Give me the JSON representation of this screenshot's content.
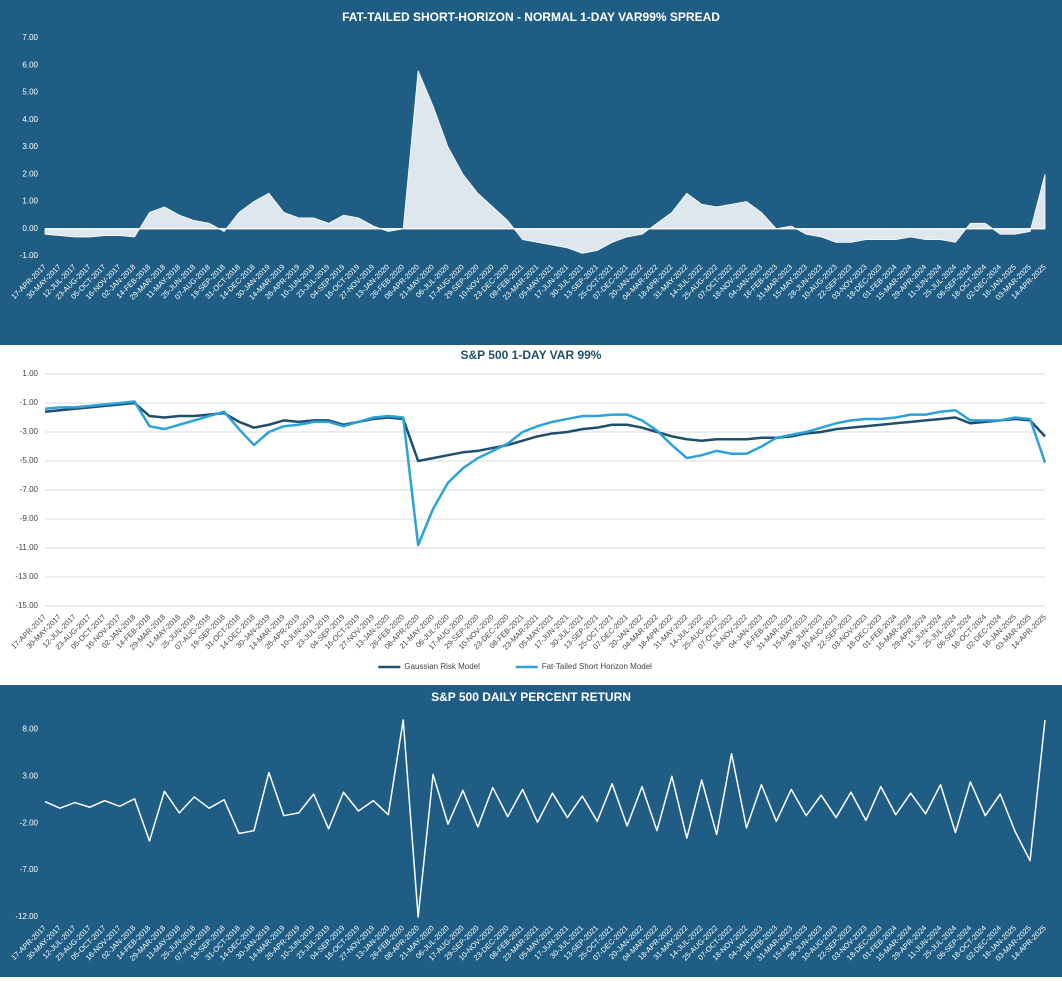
{
  "chart_data": [
    {
      "type": "area",
      "title": "FAT-TAILED SHORT-HORIZON - NORMAL 1-DAY VAR99% SPREAD",
      "background": "#1f5d85",
      "color": "#ffffff",
      "x_axis_line": true,
      "grid": false,
      "categories": [
        "17-APR-2017",
        "30-MAY-2017",
        "12-JUL-2017",
        "23-AUG-2017",
        "05-OCT-2017",
        "16-NOV-2017",
        "02-JAN-2018",
        "14-FEB-2018",
        "29-MAR-2018",
        "11-MAY-2018",
        "25-JUN-2018",
        "07-AUG-2018",
        "19-SEP-2018",
        "31-OCT-2018",
        "14-DEC-2018",
        "30-JAN-2019",
        "14-MAR-2019",
        "26-APR-2019",
        "10-JUN-2019",
        "23-JUL-2019",
        "04-SEP-2019",
        "16-OCT-2019",
        "27-NOV-2019",
        "13-JAN-2020",
        "26-FEB-2020",
        "08-APR-2020",
        "21-MAY-2020",
        "06-JUL-2020",
        "17-AUG-2020",
        "29-SEP-2020",
        "10-NOV-2020",
        "23-DEC-2020",
        "08-FEB-2021",
        "23-MAR-2021",
        "05-MAY-2021",
        "17-JUN-2021",
        "30-JUL-2021",
        "13-SEP-2021",
        "25-OCT-2021",
        "07-DEC-2021",
        "20-JAN-2022",
        "04-MAR-2022",
        "18-APR-2022",
        "31-MAY-2022",
        "14-JUL-2022",
        "25-AUG-2022",
        "07-OCT-2022",
        "18-NOV-2022",
        "04-JAN-2023",
        "16-FEB-2023",
        "31-MAR-2023",
        "15-MAY-2023",
        "28-JUN-2023",
        "10-AUG-2023",
        "22-SEP-2023",
        "03-NOV-2023",
        "18-DEC-2023",
        "01-FEB-2024",
        "15-MAR-2024",
        "29-APR-2024",
        "11-JUN-2024",
        "25-JUL-2024",
        "06-SEP-2024",
        "18-OCT-2024",
        "02-DEC-2024",
        "16-JAN-2025",
        "03-MAR-2025",
        "14-APR-2025"
      ],
      "values": [
        -0.2,
        -0.25,
        -0.3,
        -0.3,
        -0.25,
        -0.25,
        -0.3,
        0.6,
        0.8,
        0.5,
        0.3,
        0.2,
        -0.1,
        0.6,
        1.0,
        1.3,
        0.6,
        0.4,
        0.4,
        0.2,
        0.5,
        0.4,
        0.1,
        -0.1,
        0.0,
        5.8,
        4.5,
        3.0,
        2.0,
        1.3,
        0.8,
        0.3,
        -0.4,
        -0.5,
        -0.6,
        -0.7,
        -0.9,
        -0.8,
        -0.5,
        -0.3,
        -0.2,
        0.2,
        0.6,
        1.3,
        0.9,
        0.8,
        0.9,
        1.0,
        0.6,
        0.0,
        0.1,
        -0.2,
        -0.3,
        -0.5,
        -0.5,
        -0.4,
        -0.4,
        -0.4,
        -0.3,
        -0.4,
        -0.4,
        -0.5,
        0.2,
        0.2,
        -0.2,
        -0.2,
        -0.1,
        2.0
      ],
      "ylim": [
        -1,
        7
      ],
      "yticks": [
        {
          "value": 7,
          "label": "7.00"
        },
        {
          "value": 6,
          "label": "6.00"
        },
        {
          "value": 5,
          "label": "5.00"
        },
        {
          "value": 4,
          "label": "4.00"
        },
        {
          "value": 3,
          "label": "3.00"
        },
        {
          "value": 2,
          "label": "2.00"
        },
        {
          "value": 1,
          "label": "1.00"
        },
        {
          "value": 0,
          "label": "0.00"
        },
        {
          "value": -1,
          "label": "-1.00"
        }
      ]
    },
    {
      "type": "line",
      "title": "S&P 500 1-DAY VAR 99%",
      "background": "#ffffff",
      "grid": true,
      "legend": "bottom",
      "categories": [
        "17-APR-2017",
        "30-MAY-2017",
        "12-JUL-2017",
        "23-AUG-2017",
        "05-OCT-2017",
        "16-NOV-2017",
        "02-JAN-2018",
        "14-FEB-2018",
        "29-MAR-2018",
        "11-MAY-2018",
        "25-JUN-2018",
        "07-AUG-2018",
        "19-SEP-2018",
        "31-OCT-2018",
        "14-DEC-2018",
        "30-JAN-2019",
        "14-MAR-2019",
        "26-APR-2019",
        "10-JUN-2019",
        "23-JUL-2019",
        "04-SEP-2019",
        "16-OCT-2019",
        "27-NOV-2019",
        "13-JAN-2020",
        "26-FEB-2020",
        "08-APR-2020",
        "21-MAY-2020",
        "06-JUL-2020",
        "17-AUG-2020",
        "29-SEP-2020",
        "10-NOV-2020",
        "23-DEC-2020",
        "08-FEB-2021",
        "23-MAR-2021",
        "05-MAY-2021",
        "17-JUN-2021",
        "30-JUL-2021",
        "13-SEP-2021",
        "25-OCT-2021",
        "07-DEC-2021",
        "20-JAN-2022",
        "04-MAR-2022",
        "18-APR-2022",
        "31-MAY-2022",
        "14-JUL-2022",
        "25-AUG-2022",
        "07-OCT-2022",
        "18-NOV-2022",
        "04-JAN-2023",
        "16-FEB-2023",
        "31-MAR-2023",
        "15-MAY-2023",
        "28-JUN-2023",
        "10-AUG-2023",
        "22-SEP-2023",
        "03-NOV-2023",
        "18-DEC-2023",
        "01-FEB-2024",
        "15-MAR-2024",
        "29-APR-2024",
        "11-JUN-2024",
        "25-JUL-2024",
        "06-SEP-2024",
        "18-OCT-2024",
        "02-DEC-2024",
        "16-JAN-2025",
        "03-MAR-2025",
        "14-APR-2025"
      ],
      "series": [
        {
          "name": "Gaussian Risk Model",
          "color": "#1f4e6e",
          "values": [
            -1.6,
            -1.5,
            -1.4,
            -1.3,
            -1.2,
            -1.1,
            -1.0,
            -1.9,
            -2.0,
            -1.9,
            -1.9,
            -1.8,
            -1.7,
            -2.3,
            -2.7,
            -2.5,
            -2.2,
            -2.3,
            -2.2,
            -2.2,
            -2.5,
            -2.3,
            -2.1,
            -2.0,
            -2.1,
            -5.0,
            -4.8,
            -4.6,
            -4.4,
            -4.3,
            -4.1,
            -3.9,
            -3.6,
            -3.3,
            -3.1,
            -3.0,
            -2.8,
            -2.7,
            -2.5,
            -2.5,
            -2.7,
            -3.0,
            -3.3,
            -3.5,
            -3.6,
            -3.5,
            -3.5,
            -3.5,
            -3.4,
            -3.4,
            -3.3,
            -3.1,
            -3.0,
            -2.8,
            -2.7,
            -2.6,
            -2.5,
            -2.4,
            -2.3,
            -2.2,
            -2.1,
            -2.0,
            -2.4,
            -2.3,
            -2.2,
            -2.1,
            -2.2,
            -3.3
          ]
        },
        {
          "name": "Fat-Tailed Short Horizon Model",
          "color": "#2ba3d9",
          "values": [
            -1.4,
            -1.3,
            -1.3,
            -1.2,
            -1.1,
            -1.0,
            -0.9,
            -2.6,
            -2.8,
            -2.5,
            -2.2,
            -1.9,
            -1.6,
            -2.8,
            -3.9,
            -3.0,
            -2.6,
            -2.5,
            -2.3,
            -2.3,
            -2.6,
            -2.3,
            -2.0,
            -1.9,
            -2.0,
            -10.8,
            -8.3,
            -6.5,
            -5.5,
            -4.8,
            -4.3,
            -3.8,
            -3.0,
            -2.6,
            -2.3,
            -2.1,
            -1.9,
            -1.9,
            -1.8,
            -1.8,
            -2.2,
            -2.9,
            -3.9,
            -4.8,
            -4.6,
            -4.3,
            -4.5,
            -4.5,
            -4.0,
            -3.4,
            -3.2,
            -3.0,
            -2.7,
            -2.4,
            -2.2,
            -2.1,
            -2.1,
            -2.0,
            -1.8,
            -1.8,
            -1.6,
            -1.5,
            -2.2,
            -2.2,
            -2.2,
            -2.0,
            -2.1,
            -5.1
          ]
        }
      ],
      "ylim": [
        -15,
        1
      ],
      "yticks": [
        {
          "value": 1,
          "label": "1.00"
        },
        {
          "value": -1,
          "label": "-1.00"
        },
        {
          "value": -3,
          "label": "-3.00"
        },
        {
          "value": -5,
          "label": "-5.00"
        },
        {
          "value": -7,
          "label": "-7.00"
        },
        {
          "value": -9,
          "label": "-9.00"
        },
        {
          "value": -11,
          "label": "-11.00"
        },
        {
          "value": -13,
          "label": "-13.00"
        },
        {
          "value": -15,
          "label": "-15.00"
        }
      ]
    },
    {
      "type": "line",
      "title": "S&P 500 DAILY PERCENT RETURN",
      "background": "#1f5d85",
      "color": "#ffffff",
      "grid": false,
      "categories": [
        "17-APR-2017",
        "30-MAY-2017",
        "12-JUL-2017",
        "23-AUG-2017",
        "05-OCT-2017",
        "16-NOV-2017",
        "02-JAN-2018",
        "14-FEB-2018",
        "29-MAR-2018",
        "11-MAY-2018",
        "25-JUN-2018",
        "07-AUG-2018",
        "19-SEP-2018",
        "31-OCT-2018",
        "14-DEC-2018",
        "30-JAN-2019",
        "14-MAR-2019",
        "26-APR-2019",
        "10-JUN-2019",
        "23-JUL-2019",
        "04-SEP-2019",
        "16-OCT-2019",
        "27-NOV-2019",
        "13-JAN-2020",
        "26-FEB-2020",
        "08-APR-2020",
        "21-MAY-2020",
        "06-JUL-2020",
        "17-AUG-2020",
        "29-SEP-2020",
        "10-NOV-2020",
        "23-DEC-2020",
        "08-FEB-2021",
        "23-MAR-2021",
        "05-MAY-2021",
        "17-JUN-2021",
        "30-JUL-2021",
        "13-SEP-2021",
        "25-OCT-2021",
        "07-DEC-2021",
        "20-JAN-2022",
        "04-MAR-2022",
        "18-APR-2022",
        "31-MAY-2022",
        "14-JUL-2022",
        "25-AUG-2022",
        "07-OCT-2022",
        "18-NOV-2022",
        "04-JAN-2023",
        "16-FEB-2023",
        "31-MAR-2023",
        "15-MAY-2023",
        "28-JUN-2023",
        "10-AUG-2023",
        "22-SEP-2023",
        "03-NOV-2023",
        "18-DEC-2023",
        "01-FEB-2024",
        "15-MAR-2024",
        "29-APR-2024",
        "11-JUN-2024",
        "25-JUL-2024",
        "06-SEP-2024",
        "18-OCT-2024",
        "02-DEC-2024",
        "16-JAN-2025",
        "03-MAR-2025",
        "14-APR-2025"
      ],
      "values": [
        0.3,
        -0.4,
        0.2,
        -0.3,
        0.4,
        -0.2,
        0.6,
        -3.9,
        1.4,
        -0.9,
        0.8,
        -0.4,
        0.5,
        -3.1,
        -2.8,
        3.4,
        -1.2,
        -0.9,
        1.1,
        -2.6,
        1.3,
        -0.7,
        0.4,
        -1.1,
        9.0,
        -12.0,
        3.2,
        -2.1,
        1.5,
        -2.4,
        1.8,
        -1.3,
        1.6,
        -1.9,
        1.2,
        -1.4,
        0.9,
        -1.8,
        2.2,
        -2.3,
        1.9,
        -2.8,
        3.0,
        -3.6,
        2.6,
        -3.2,
        5.4,
        -2.5,
        2.1,
        -1.8,
        1.6,
        -1.2,
        1.0,
        -1.4,
        1.3,
        -1.7,
        1.9,
        -1.1,
        1.2,
        -1.0,
        2.1,
        -3.0,
        2.4,
        -1.2,
        1.1,
        -2.9,
        -6.0,
        9.0
      ],
      "ylim": [
        -12,
        9
      ],
      "yticks": [
        {
          "value": 8,
          "label": "8.00"
        },
        {
          "value": 3,
          "label": "3.00"
        },
        {
          "value": -2,
          "label": "-2.00"
        },
        {
          "value": -7,
          "label": "-7.00"
        },
        {
          "value": -12,
          "label": "-12.00"
        }
      ]
    }
  ]
}
